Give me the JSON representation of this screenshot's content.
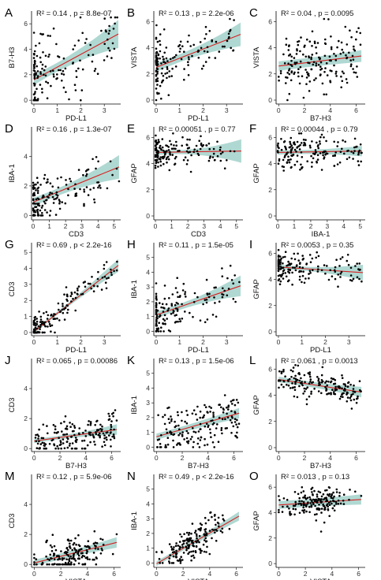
{
  "colors": {
    "points": "#000000",
    "fit_line": "#d62020",
    "ci_band": "#6fb8ad"
  },
  "chart_data": [
    {
      "id": "A",
      "type": "scatter",
      "letter": "A",
      "stat": "R² = 0.14 , p = 8.8e-07",
      "xlabel": "PD-L1",
      "ylabel": "B7-H3",
      "xlim": [
        -0.1,
        3.7
      ],
      "ylim": [
        -0.3,
        7.0
      ],
      "xticks": [
        0,
        1,
        2,
        3
      ],
      "yticks": [
        0,
        2,
        4,
        6
      ],
      "fit": {
        "intercept": 1.6,
        "slope": 1.0,
        "ci_hw": [
          0.35,
          1.1
        ]
      },
      "x_dist": "rightskew",
      "x_range": [
        0,
        3.6
      ],
      "y_range": [
        0,
        6.5
      ],
      "noise": 1.6,
      "n": 150
    },
    {
      "id": "B",
      "type": "scatter",
      "letter": "B",
      "stat": "R² = 0.13 , p = 2.2e-06",
      "xlabel": "PD-L1",
      "ylabel": "VISTA",
      "xlim": [
        -0.1,
        3.7
      ],
      "ylim": [
        -0.3,
        6.8
      ],
      "xticks": [
        0,
        1,
        2,
        3
      ],
      "yticks": [
        0,
        2,
        4,
        6
      ],
      "fit": {
        "intercept": 2.5,
        "slope": 0.7,
        "ci_hw": [
          0.3,
          0.9
        ]
      },
      "x_dist": "rightskew",
      "x_range": [
        0,
        3.6
      ],
      "y_range": [
        0,
        6.2
      ],
      "noise": 1.1,
      "n": 150
    },
    {
      "id": "C",
      "type": "scatter",
      "letter": "C",
      "stat": "R² = 0.04 , p = 0.0095",
      "xlabel": "B7-H3",
      "ylabel": "VISTA",
      "xlim": [
        -0.2,
        6.7
      ],
      "ylim": [
        -0.3,
        6.8
      ],
      "xticks": [
        0,
        2,
        4,
        6
      ],
      "yticks": [
        0,
        2,
        4,
        6
      ],
      "fit": {
        "intercept": 2.6,
        "slope": 0.12,
        "ci_hw": [
          0.35,
          0.45
        ]
      },
      "x_dist": "uniform",
      "x_range": [
        0,
        6.4
      ],
      "y_range": [
        0,
        6.2
      ],
      "noise": 1.2,
      "n": 170
    },
    {
      "id": "D",
      "type": "scatter",
      "letter": "D",
      "stat": "R² = 0.16 , p = 1.3e-07",
      "xlabel": "CD3",
      "ylabel": "IBA-1",
      "xlim": [
        -0.1,
        5.4
      ],
      "ylim": [
        -0.3,
        6.0
      ],
      "xticks": [
        0,
        1,
        2,
        3,
        4,
        5
      ],
      "yticks": [
        0,
        2,
        4
      ],
      "fit": {
        "intercept": 0.9,
        "slope": 0.45,
        "ci_hw": [
          0.25,
          0.8
        ]
      },
      "x_dist": "rightskew",
      "x_range": [
        0,
        5.3
      ],
      "y_range": [
        0,
        5.5
      ],
      "noise": 0.8,
      "n": 150
    },
    {
      "id": "E",
      "type": "scatter",
      "letter": "E",
      "stat": "R² = 0.00051 , p = 0.77",
      "xlabel": "CD3",
      "ylabel": "GFAP",
      "xlim": [
        -0.1,
        5.4
      ],
      "ylim": [
        -0.3,
        6.8
      ],
      "xticks": [
        0,
        1,
        2,
        3,
        4,
        5
      ],
      "yticks": [
        0,
        2,
        4,
        6
      ],
      "fit": {
        "intercept": 4.85,
        "slope": 0.02,
        "ci_hw": [
          0.15,
          0.9
        ]
      },
      "x_dist": "rightskew",
      "x_range": [
        0,
        5.3
      ],
      "y_range": [
        0,
        6.3
      ],
      "noise": 0.6,
      "n": 150
    },
    {
      "id": "F",
      "type": "scatter",
      "letter": "F",
      "stat": "R² = 0.00044 , p = 0.79",
      "xlabel": "IBA-1",
      "ylabel": "GFAP",
      "xlim": [
        -0.1,
        5.3
      ],
      "ylim": [
        -0.3,
        6.8
      ],
      "xticks": [
        0,
        1,
        2,
        3,
        4,
        5
      ],
      "yticks": [
        0,
        2,
        4,
        6
      ],
      "fit": {
        "intercept": 4.85,
        "slope": 0.02,
        "ci_hw": [
          0.15,
          0.4
        ]
      },
      "x_dist": "moderate",
      "x_range": [
        0,
        5.1
      ],
      "y_range": [
        0,
        6.3
      ],
      "noise": 0.6,
      "n": 160
    },
    {
      "id": "G",
      "type": "scatter",
      "letter": "G",
      "stat": "R² = 0.69 , p < 2.2e-16",
      "xlabel": "PD-L1",
      "ylabel": "CD3",
      "xlim": [
        -0.1,
        3.7
      ],
      "ylim": [
        -0.2,
        5.6
      ],
      "xticks": [
        0,
        1,
        2,
        3
      ],
      "yticks": [
        0,
        1,
        2,
        3,
        4,
        5
      ],
      "fit": {
        "intercept": 0.05,
        "slope": 1.15,
        "ci_hw": [
          0.1,
          0.4
        ]
      },
      "x_dist": "rightskew",
      "x_range": [
        0,
        3.6
      ],
      "y_range": [
        0,
        5.3
      ],
      "noise": 0.45,
      "n": 160
    },
    {
      "id": "H",
      "type": "scatter",
      "letter": "H",
      "stat": "R² = 0.11 , p = 1.5e-05",
      "xlabel": "PD-L1",
      "ylabel": "IBA-1",
      "xlim": [
        -0.1,
        3.7
      ],
      "ylim": [
        -0.3,
        6.0
      ],
      "xticks": [
        0,
        1,
        2,
        3
      ],
      "yticks": [
        0,
        1,
        2,
        3,
        4,
        5
      ],
      "fit": {
        "intercept": 1.1,
        "slope": 0.55,
        "ci_hw": [
          0.2,
          0.7
        ]
      },
      "x_dist": "rightskew",
      "x_range": [
        0,
        3.6
      ],
      "y_range": [
        0,
        5.5
      ],
      "noise": 0.8,
      "n": 150
    },
    {
      "id": "I",
      "type": "scatter",
      "letter": "I",
      "stat": "R² = 0.0053 , p = 0.35",
      "xlabel": "PD-L1",
      "ylabel": "GFAP",
      "xlim": [
        -0.1,
        3.7
      ],
      "ylim": [
        -0.3,
        6.8
      ],
      "xticks": [
        0,
        1,
        2,
        3
      ],
      "yticks": [
        0,
        2,
        4,
        6
      ],
      "fit": {
        "intercept": 4.95,
        "slope": -0.12,
        "ci_hw": [
          0.15,
          0.6
        ]
      },
      "x_dist": "rightskew",
      "x_range": [
        0,
        3.6
      ],
      "y_range": [
        0,
        6.3
      ],
      "noise": 0.6,
      "n": 150
    },
    {
      "id": "J",
      "type": "scatter",
      "letter": "J",
      "stat": "R² = 0.065 , p = 0.00086",
      "xlabel": "B7-H3",
      "ylabel": "CD3",
      "xlim": [
        -0.2,
        6.7
      ],
      "ylim": [
        -0.2,
        6.0
      ],
      "xticks": [
        0,
        2,
        4,
        6
      ],
      "yticks": [
        0,
        2,
        4
      ],
      "fit": {
        "intercept": 0.5,
        "slope": 0.12,
        "ci_hw": [
          0.12,
          0.35
        ]
      },
      "x_dist": "uniform",
      "x_range": [
        0,
        6.4
      ],
      "y_range": [
        0,
        5.3
      ],
      "noise": 0.6,
      "n": 170
    },
    {
      "id": "K",
      "type": "scatter",
      "letter": "K",
      "stat": "R² = 0.13 , p = 1.5e-06",
      "xlabel": "B7-H3",
      "ylabel": "IBA-1",
      "xlim": [
        -0.2,
        6.7
      ],
      "ylim": [
        -0.3,
        6.0
      ],
      "xticks": [
        0,
        2,
        4,
        6
      ],
      "yticks": [
        0,
        1,
        2,
        3,
        4,
        5
      ],
      "fit": {
        "intercept": 0.7,
        "slope": 0.25,
        "ci_hw": [
          0.2,
          0.35
        ]
      },
      "x_dist": "uniform",
      "x_range": [
        0,
        6.4
      ],
      "y_range": [
        0,
        5.5
      ],
      "noise": 0.8,
      "n": 170
    },
    {
      "id": "L",
      "type": "scatter",
      "letter": "L",
      "stat": "R² = 0.061 , p = 0.0013",
      "xlabel": "B7-H3",
      "ylabel": "GFAP",
      "xlim": [
        -0.2,
        6.7
      ],
      "ylim": [
        -0.3,
        6.8
      ],
      "xticks": [
        0,
        2,
        4,
        6
      ],
      "yticks": [
        0,
        2,
        4,
        6
      ],
      "fit": {
        "intercept": 5.2,
        "slope": -0.15,
        "ci_hw": [
          0.2,
          0.4
        ]
      },
      "x_dist": "uniform",
      "x_range": [
        0,
        6.4
      ],
      "y_range": [
        0,
        6.3
      ],
      "noise": 0.5,
      "n": 170
    },
    {
      "id": "M",
      "type": "scatter",
      "letter": "M",
      "stat": "R² = 0.12 , p = 5.9e-06",
      "xlabel": "VISTA",
      "ylabel": "CD3",
      "xlim": [
        -0.2,
        6.5
      ],
      "ylim": [
        -0.2,
        6.0
      ],
      "xticks": [
        0,
        2,
        4,
        6
      ],
      "yticks": [
        0,
        2,
        4
      ],
      "fit": {
        "intercept": 0.1,
        "slope": 0.22,
        "ci_hw": [
          0.2,
          0.35
        ]
      },
      "x_dist": "central",
      "x_range": [
        0,
        6.2
      ],
      "y_range": [
        0,
        5.3
      ],
      "noise": 0.6,
      "n": 170
    },
    {
      "id": "N",
      "type": "scatter",
      "letter": "N",
      "stat": "R² = 0.49 , p < 2.2e-16",
      "xlabel": "VISTA",
      "ylabel": "IBA-1",
      "xlim": [
        -0.2,
        6.5
      ],
      "ylim": [
        -0.3,
        6.0
      ],
      "xticks": [
        0,
        2,
        4,
        6
      ],
      "yticks": [
        0,
        1,
        2,
        3,
        4,
        5
      ],
      "fit": {
        "intercept": -0.05,
        "slope": 0.52,
        "ci_hw": [
          0.15,
          0.3
        ]
      },
      "x_dist": "central",
      "x_range": [
        0,
        6.2
      ],
      "y_range": [
        0,
        5.5
      ],
      "noise": 0.55,
      "n": 170
    },
    {
      "id": "O",
      "type": "scatter",
      "letter": "O",
      "stat": "R² = 0.013 , p = 0.13",
      "xlabel": "VISTA",
      "ylabel": "GFAP",
      "xlim": [
        -0.2,
        6.5
      ],
      "ylim": [
        -0.3,
        7.0
      ],
      "xticks": [
        0,
        2,
        4,
        6
      ],
      "yticks": [
        0,
        2,
        4,
        6
      ],
      "fit": {
        "intercept": 4.6,
        "slope": 0.07,
        "ci_hw": [
          0.3,
          0.4
        ]
      },
      "x_dist": "central",
      "x_range": [
        0,
        6.2
      ],
      "y_range": [
        0,
        6.5
      ],
      "noise": 0.6,
      "n": 170
    }
  ]
}
